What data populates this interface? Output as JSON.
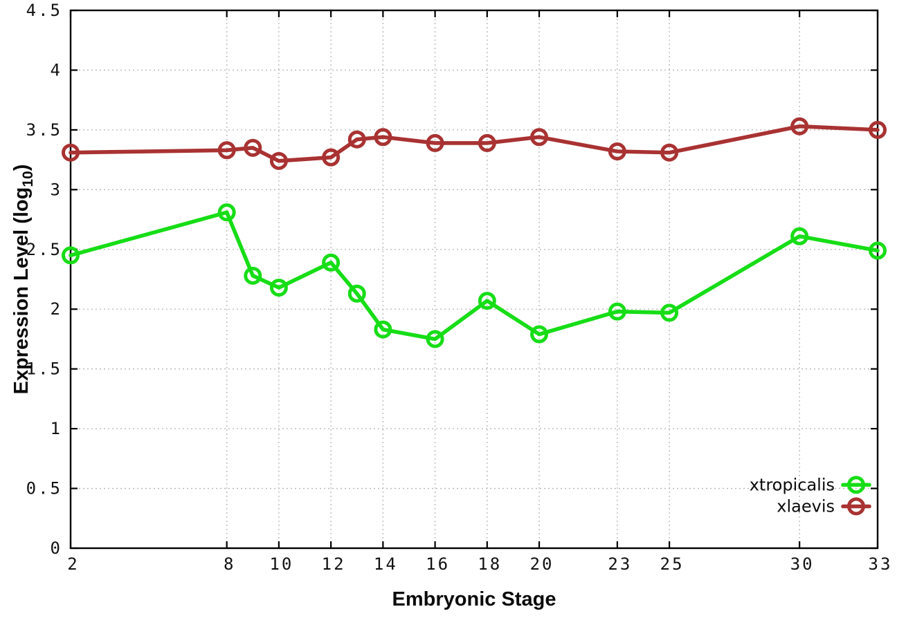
{
  "chart_data": {
    "type": "line",
    "title": "",
    "xlabel": "Embryonic Stage",
    "ylabel": {
      "prefix": "Expression Level (log",
      "subscript": "10",
      "suffix": ")"
    },
    "xlim": [
      2,
      33
    ],
    "ylim": [
      0,
      4.5
    ],
    "xticks": [
      2,
      8,
      10,
      12,
      14,
      16,
      18,
      20,
      23,
      25,
      30,
      33
    ],
    "xtick_labels": [
      "2",
      "8",
      "10",
      "12",
      "14",
      "16",
      "18",
      "20",
      "23",
      "25",
      "30",
      "33"
    ],
    "yticks": [
      0,
      0.5,
      1,
      1.5,
      2,
      2.5,
      3,
      3.5,
      4,
      4.5
    ],
    "ytick_labels": [
      "0",
      "0.5",
      "1",
      "1.5",
      "2",
      "2.5",
      "3",
      "3.5",
      "4",
      "4.5"
    ],
    "grid": true,
    "background_color": "#ffffff",
    "border_color": "#000000",
    "grid_color": "#b5b5b5",
    "x": [
      2,
      8,
      9,
      10,
      12,
      13,
      14,
      16,
      18,
      20,
      23,
      25,
      30,
      33
    ],
    "series": [
      {
        "name": "xtropicalis",
        "color": "#17dd17",
        "marker": "open-circle",
        "values": [
          2.45,
          2.81,
          2.28,
          2.18,
          2.39,
          2.13,
          1.83,
          1.75,
          2.07,
          1.79,
          1.98,
          1.97,
          2.61,
          2.49
        ]
      },
      {
        "name": "xlaevis",
        "color": "#a93232",
        "marker": "open-circle",
        "values": [
          3.31,
          3.33,
          3.35,
          3.24,
          3.27,
          3.42,
          3.44,
          3.39,
          3.39,
          3.44,
          3.32,
          3.31,
          3.53,
          3.5
        ]
      }
    ],
    "legend": {
      "position": "bottom-right",
      "entries": [
        "xtropicalis",
        "xlaevis"
      ]
    }
  }
}
